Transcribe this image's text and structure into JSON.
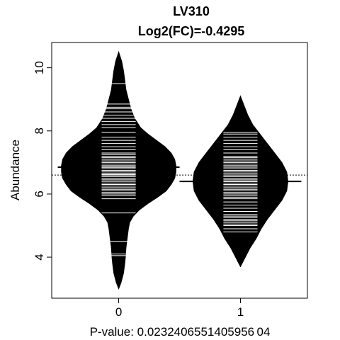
{
  "chart_data": {
    "type": "beanplot",
    "title": "LV310",
    "subtitle": "Log2(FC)=-0.4295",
    "xlabel": "P-value: 0.0232406551405956 04",
    "ylabel": "Abundance",
    "categories": [
      "0",
      "1"
    ],
    "yticks": [
      4,
      6,
      8,
      10
    ],
    "ytick_labels": [
      "4",
      "6",
      "8",
      "10"
    ],
    "ylim": [
      2.7,
      10.8
    ],
    "xlim": [
      0.45,
      2.55
    ],
    "overall_mean": 6.6,
    "colors": {
      "bean": "#000000",
      "line": "#ffffff",
      "frame": "#000000"
    },
    "series": [
      {
        "category": "0",
        "mean": 6.85,
        "density": [
          [
            3.0,
            0.0
          ],
          [
            3.2,
            0.02
          ],
          [
            3.5,
            0.04
          ],
          [
            3.8,
            0.05
          ],
          [
            4.0,
            0.055
          ],
          [
            4.3,
            0.06
          ],
          [
            4.6,
            0.07
          ],
          [
            4.9,
            0.08
          ],
          [
            5.1,
            0.09
          ],
          [
            5.3,
            0.12
          ],
          [
            5.5,
            0.17
          ],
          [
            5.7,
            0.24
          ],
          [
            5.9,
            0.32
          ],
          [
            6.1,
            0.39
          ],
          [
            6.3,
            0.43
          ],
          [
            6.5,
            0.46
          ],
          [
            6.7,
            0.47
          ],
          [
            6.9,
            0.47
          ],
          [
            7.1,
            0.46
          ],
          [
            7.3,
            0.43
          ],
          [
            7.5,
            0.38
          ],
          [
            7.7,
            0.31
          ],
          [
            7.9,
            0.24
          ],
          [
            8.1,
            0.18
          ],
          [
            8.4,
            0.13
          ],
          [
            8.7,
            0.1
          ],
          [
            9.0,
            0.08
          ],
          [
            9.3,
            0.06
          ],
          [
            9.6,
            0.05
          ],
          [
            9.9,
            0.04
          ],
          [
            10.2,
            0.025
          ],
          [
            10.5,
            0.0
          ]
        ],
        "points": [
          4.05,
          4.1,
          4.5,
          5.4,
          5.85,
          5.95,
          6.0,
          6.05,
          6.1,
          6.15,
          6.2,
          6.25,
          6.3,
          6.35,
          6.4,
          6.45,
          6.5,
          6.55,
          6.6,
          6.62,
          6.65,
          6.7,
          6.75,
          6.8,
          6.85,
          6.9,
          6.95,
          7.0,
          7.05,
          7.1,
          7.15,
          7.2,
          7.25,
          7.3,
          7.4,
          7.5,
          7.6,
          7.7,
          7.8,
          7.95,
          8.1,
          8.2,
          8.3,
          8.4,
          8.5,
          8.6,
          8.7,
          8.75,
          8.85,
          9.5
        ]
      },
      {
        "category": "1",
        "mean": 6.4,
        "density": [
          [
            3.7,
            0.0
          ],
          [
            4.0,
            0.04
          ],
          [
            4.3,
            0.08
          ],
          [
            4.6,
            0.13
          ],
          [
            4.9,
            0.17
          ],
          [
            5.2,
            0.22
          ],
          [
            5.5,
            0.28
          ],
          [
            5.8,
            0.34
          ],
          [
            6.1,
            0.38
          ],
          [
            6.4,
            0.39
          ],
          [
            6.7,
            0.38
          ],
          [
            7.0,
            0.34
          ],
          [
            7.3,
            0.28
          ],
          [
            7.6,
            0.22
          ],
          [
            7.9,
            0.16
          ],
          [
            8.2,
            0.1
          ],
          [
            8.5,
            0.06
          ],
          [
            8.8,
            0.03
          ],
          [
            9.1,
            0.0
          ]
        ],
        "points": [
          4.8,
          4.9,
          5.0,
          5.05,
          5.1,
          5.15,
          5.2,
          5.25,
          5.3,
          5.35,
          5.45,
          5.55,
          5.65,
          5.75,
          5.85,
          5.9,
          5.95,
          6.0,
          6.05,
          6.1,
          6.15,
          6.2,
          6.25,
          6.3,
          6.35,
          6.4,
          6.45,
          6.5,
          6.55,
          6.6,
          6.65,
          6.7,
          6.75,
          6.8,
          6.85,
          6.9,
          6.95,
          7.0,
          7.05,
          7.1,
          7.15,
          7.2,
          7.3,
          7.4,
          7.5,
          7.6,
          7.7,
          7.8,
          7.9,
          7.95
        ]
      }
    ]
  }
}
